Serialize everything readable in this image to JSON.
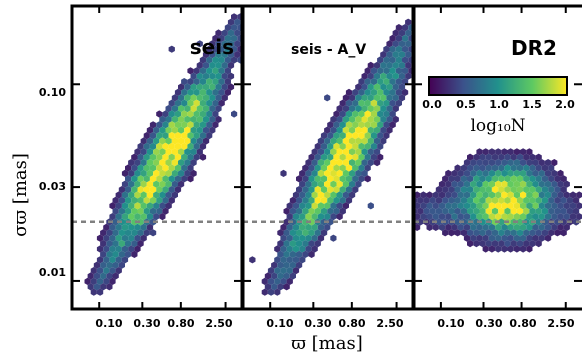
{
  "chart_data": [
    {
      "type": "heatmap",
      "title": "seis",
      "xlabel": "ϖ [mas]",
      "ylabel": "σϖ [mas]",
      "xscale": "log",
      "yscale": "log",
      "xlim": [
        0.05,
        3.8
      ],
      "ylim": [
        0.0072,
        0.25
      ],
      "x_ticks": [
        "0.10",
        "0.30",
        "0.80",
        "2.50"
      ],
      "y_ticks": [
        "0.01",
        "0.03",
        "0.10"
      ],
      "reference_line_y": 0.02,
      "density": {
        "trend": "narrow diagonal band, σϖ increasing with ϖ",
        "x_range": [
          0.1,
          3.0
        ],
        "y_range": [
          0.009,
          0.18
        ],
        "peak": [
          0.9,
          0.04
        ]
      }
    },
    {
      "type": "heatmap",
      "title": "seis - A_V",
      "xlabel": "ϖ [mas]",
      "xscale": "log",
      "yscale": "log",
      "xlim": [
        0.05,
        3.8
      ],
      "ylim": [
        0.0072,
        0.25
      ],
      "x_ticks": [
        "0.10",
        "0.30",
        "0.80",
        "2.50"
      ],
      "reference_line_y": 0.02,
      "density": {
        "trend": "narrow diagonal band, σϖ increasing with ϖ",
        "x_range": [
          0.12,
          3.2
        ],
        "y_range": [
          0.008,
          0.18
        ],
        "peak": [
          0.9,
          0.04
        ]
      }
    },
    {
      "type": "heatmap",
      "title": "DR2",
      "xlabel": "ϖ [mas]",
      "xscale": "log",
      "yscale": "log",
      "xlim": [
        0.05,
        3.8
      ],
      "ylim": [
        0.0072,
        0.25
      ],
      "x_ticks": [
        "0.10",
        "0.30",
        "0.80",
        "2.50"
      ],
      "reference_line_y": 0.02,
      "density": {
        "trend": "compact cloud with weak dependence on ϖ",
        "x_range": [
          0.1,
          3.8
        ],
        "y_range": [
          0.011,
          0.05
        ],
        "peak": [
          0.9,
          0.023
        ]
      }
    }
  ],
  "colorbar": {
    "label": "log₁₀N",
    "ticks": [
      "0.0",
      "0.5",
      "1.0",
      "1.5",
      "2.0"
    ],
    "range": [
      0,
      2
    ],
    "colormap": "viridis"
  },
  "colors": {
    "reference_line": "#808080",
    "viridis": [
      "#440154",
      "#3b528b",
      "#21918c",
      "#5ec962",
      "#fde725"
    ]
  }
}
